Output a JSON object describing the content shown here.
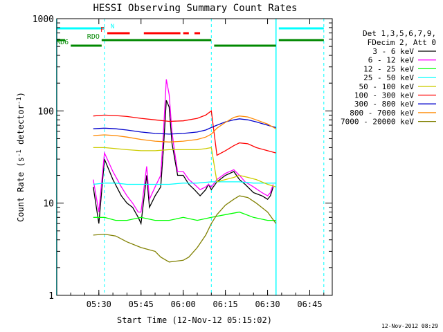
{
  "chart_data": {
    "type": "line",
    "title": "HESSI Observing Summary Count Rates",
    "xlabel": "Start Time (12-Nov-12 05:15:02)",
    "ylabel": "Count Rate (s⁻¹ detector⁻¹)",
    "ylabel_main": "Count Rate (s",
    "ylabel_sup1": "-1",
    "ylabel_mid": " detector",
    "ylabel_sup2": "-1",
    "ylabel_end": ")",
    "y_scale": "log",
    "ylim": [
      1,
      1000
    ],
    "xlim": [
      "05:15:02",
      "06:53:00"
    ],
    "x_ticks": [
      "05:30",
      "05:45",
      "06:00",
      "06:15",
      "06:30",
      "06:45"
    ],
    "y_ticks": [
      "1",
      "10",
      "100",
      "1000"
    ],
    "legend_placement": "right",
    "legend_header": [
      "Det 1,3,5,6,7,9,",
      "FDecim 2, Att 0"
    ],
    "footer": "12-Nov-2012 08:29",
    "flags": [
      {
        "label": "N",
        "color": "#00ffff",
        "segments": [
          [
            "05:15",
            "05:32"
          ],
          [
            "06:34",
            "06:50"
          ]
        ]
      },
      {
        "label": "F",
        "color": "#ff0000",
        "segments": [
          [
            "05:33",
            "05:41"
          ],
          [
            "05:46",
            "05:59"
          ],
          [
            "06:00",
            "06:02"
          ],
          [
            "06:04",
            "06:06"
          ]
        ]
      },
      {
        "label": "RDO",
        "color": "#008800",
        "segments": [
          [
            "05:15",
            "05:18"
          ],
          [
            "05:31",
            "06:10"
          ],
          [
            "06:34",
            "06:50"
          ]
        ]
      },
      {
        "label": "RD6",
        "color": "#008800",
        "segments": [
          [
            "05:20",
            "05:31"
          ],
          [
            "06:11",
            "06:33"
          ]
        ]
      }
    ],
    "markers": {
      "solid": [
        "05:15",
        "06:33"
      ],
      "dashed": [
        "05:32",
        "06:10",
        "06:50"
      ]
    },
    "series": [
      {
        "name": "3 - 6 keV",
        "color": "#000000",
        "x": [
          "05:28",
          "05:30",
          "05:32",
          "05:35",
          "05:38",
          "05:40",
          "05:42",
          "05:44",
          "05:45",
          "05:47",
          "05:48",
          "05:50",
          "05:52",
          "05:53",
          "05:54",
          "05:55",
          "05:56",
          "05:57",
          "05:58",
          "06:00",
          "06:02",
          "06:04",
          "06:06",
          "06:08",
          "06:09",
          "06:10",
          "06:12",
          "06:15",
          "06:18",
          "06:20",
          "06:22",
          "06:25",
          "06:28",
          "06:30",
          "06:31",
          "06:32"
        ],
        "y": [
          15,
          6,
          30,
          18,
          12,
          10,
          9,
          7,
          6,
          20,
          9,
          12,
          15,
          40,
          130,
          110,
          45,
          30,
          20,
          20,
          16,
          14,
          12,
          14,
          16,
          14,
          17,
          20,
          22,
          18,
          16,
          13,
          12,
          11,
          12,
          15
        ]
      },
      {
        "name": "6 - 12 keV",
        "color": "#ff00ff",
        "x": [
          "05:28",
          "05:30",
          "05:32",
          "05:35",
          "05:38",
          "05:40",
          "05:42",
          "05:44",
          "05:45",
          "05:47",
          "05:48",
          "05:50",
          "05:52",
          "05:53",
          "05:54",
          "05:55",
          "05:56",
          "05:57",
          "05:58",
          "06:00",
          "06:02",
          "06:04",
          "06:06",
          "06:08",
          "06:09",
          "06:10",
          "06:12",
          "06:15",
          "06:18",
          "06:20",
          "06:22",
          "06:25",
          "06:28",
          "06:30",
          "06:31",
          "06:32"
        ],
        "y": [
          18,
          8,
          35,
          22,
          15,
          12,
          10,
          8,
          8,
          25,
          11,
          15,
          20,
          60,
          220,
          150,
          60,
          35,
          22,
          22,
          18,
          16,
          14,
          15,
          16,
          15,
          18,
          21,
          23,
          20,
          17,
          15,
          13,
          12,
          13,
          16
        ]
      },
      {
        "name": "12 - 25 keV",
        "color": "#00ff00",
        "x": [
          "05:28",
          "05:32",
          "05:36",
          "05:40",
          "05:45",
          "05:50",
          "05:55",
          "06:00",
          "06:05",
          "06:10",
          "06:15",
          "06:20",
          "06:25",
          "06:30",
          "06:33"
        ],
        "y": [
          7,
          7,
          6.5,
          6.5,
          7,
          6.5,
          6.5,
          7,
          6.5,
          7,
          7.5,
          8,
          7,
          6.5,
          6.5
        ]
      },
      {
        "name": "25 - 50 keV",
        "color": "#00ffff",
        "x": [
          "05:28",
          "05:32",
          "05:36",
          "05:40",
          "05:45",
          "05:50",
          "05:55",
          "06:00",
          "06:05",
          "06:10",
          "06:15",
          "06:20",
          "06:25",
          "06:30",
          "06:33"
        ],
        "y": [
          16,
          16.5,
          16.5,
          16,
          16,
          16,
          16,
          16.5,
          16.5,
          17,
          17,
          17,
          16.5,
          16.5,
          16.5
        ]
      },
      {
        "name": "50 - 100 keV",
        "color": "#cccc00",
        "x": [
          "05:28",
          "05:32",
          "05:36",
          "05:40",
          "05:45",
          "05:50",
          "05:55",
          "06:00",
          "06:05",
          "06:08",
          "06:10",
          "06:12",
          "06:15",
          "06:18",
          "06:20",
          "06:23",
          "06:26",
          "06:30",
          "06:33"
        ],
        "y": [
          40,
          40,
          39,
          38,
          37,
          37,
          38,
          38,
          38,
          39,
          40,
          17,
          18,
          19,
          20,
          19,
          18,
          16,
          15
        ]
      },
      {
        "name": "100 - 300 keV",
        "color": "#ff0000",
        "x": [
          "05:28",
          "05:32",
          "05:36",
          "05:40",
          "05:45",
          "05:50",
          "05:55",
          "06:00",
          "06:05",
          "06:08",
          "06:10",
          "06:12",
          "06:15",
          "06:18",
          "06:20",
          "06:23",
          "06:26",
          "06:30",
          "06:33"
        ],
        "y": [
          88,
          90,
          89,
          87,
          83,
          80,
          77,
          78,
          83,
          90,
          100,
          33,
          37,
          42,
          45,
          44,
          40,
          37,
          35
        ]
      },
      {
        "name": "300 - 800 keV",
        "color": "#0000cc",
        "x": [
          "05:28",
          "05:32",
          "05:36",
          "05:40",
          "05:45",
          "05:50",
          "05:55",
          "06:00",
          "06:05",
          "06:08",
          "06:10",
          "06:12",
          "06:15",
          "06:18",
          "06:20",
          "06:23",
          "06:26",
          "06:30",
          "06:33"
        ],
        "y": [
          64,
          65,
          64,
          62,
          59,
          57,
          56,
          57,
          59,
          62,
          66,
          70,
          76,
          80,
          82,
          80,
          76,
          70,
          66
        ]
      },
      {
        "name": "800 - 7000 keV",
        "color": "#ff8800",
        "x": [
          "05:28",
          "05:32",
          "05:36",
          "05:40",
          "05:45",
          "05:50",
          "05:55",
          "06:00",
          "06:05",
          "06:08",
          "06:10",
          "06:12",
          "06:15",
          "06:18",
          "06:20",
          "06:23",
          "06:26",
          "06:30",
          "06:33"
        ],
        "y": [
          54,
          55,
          54,
          52,
          49,
          47,
          46,
          47,
          49,
          52,
          56,
          65,
          75,
          85,
          88,
          86,
          80,
          72,
          64
        ]
      },
      {
        "name": "7000 - 20000 keV",
        "color": "#808000",
        "x": [
          "05:28",
          "05:32",
          "05:36",
          "05:40",
          "05:45",
          "05:50",
          "05:52",
          "05:55",
          "06:00",
          "06:02",
          "06:05",
          "06:08",
          "06:10",
          "06:12",
          "06:15",
          "06:18",
          "06:20",
          "06:23",
          "06:26",
          "06:30",
          "06:33"
        ],
        "y": [
          4.5,
          4.6,
          4.4,
          3.8,
          3.3,
          3.0,
          2.6,
          2.3,
          2.4,
          2.6,
          3.3,
          4.5,
          6.0,
          7.5,
          9.5,
          11,
          12,
          11.5,
          10,
          8,
          6
        ]
      }
    ]
  }
}
